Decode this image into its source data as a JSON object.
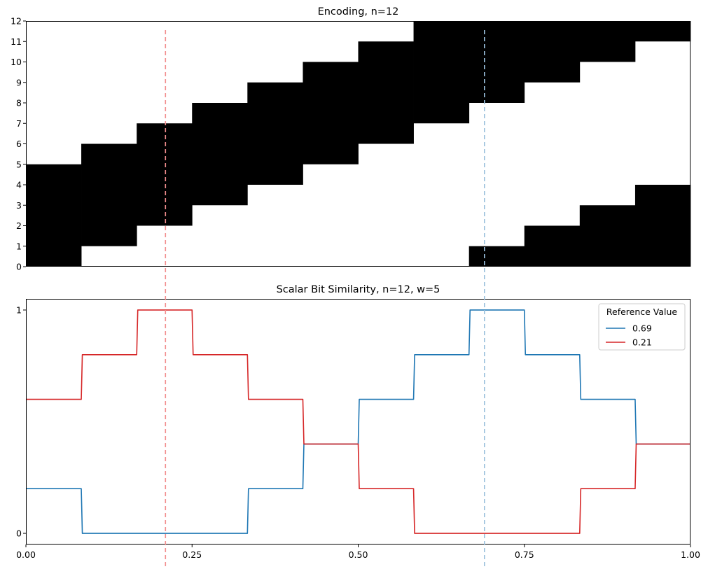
{
  "chart_data": [
    {
      "type": "heatmap",
      "title": "Encoding, n=12",
      "n": 12,
      "w": 5,
      "x_range": [
        0,
        1
      ],
      "y_range": [
        0,
        12
      ],
      "yticks": [
        "0",
        "1",
        "2",
        "3",
        "4",
        "5",
        "6",
        "7",
        "8",
        "9",
        "10",
        "11",
        "12"
      ],
      "cell_color": "#000000",
      "background_color": "#ffffff",
      "x_bins": [
        0,
        0.0833,
        0.1667,
        0.25,
        0.3333,
        0.4167,
        0.5,
        0.5833,
        0.6667,
        0.75,
        0.8333,
        0.9167,
        1.0
      ],
      "active_bits": [
        {
          "x_start": 0,
          "x_end": 0.0833,
          "y_start": 0,
          "y_end": 5
        },
        {
          "x_start": 0.0833,
          "x_end": 0.1667,
          "y_start": 1,
          "y_end": 6
        },
        {
          "x_start": 0.1667,
          "x_end": 0.25,
          "y_start": 2,
          "y_end": 7
        },
        {
          "x_start": 0.25,
          "x_end": 0.3333,
          "y_start": 3,
          "y_end": 8
        },
        {
          "x_start": 0.3333,
          "x_end": 0.4167,
          "y_start": 4,
          "y_end": 9
        },
        {
          "x_start": 0.4167,
          "x_end": 0.5,
          "y_start": 5,
          "y_end": 10
        },
        {
          "x_start": 0.5,
          "x_end": 0.5833,
          "y_start": 6,
          "y_end": 11
        },
        {
          "x_start": 0.5833,
          "x_end": 0.6667,
          "y_start": 7,
          "y_end": 12
        },
        {
          "x_start": 0.6667,
          "x_end": 0.75,
          "y_start": 8,
          "y_end": 12
        },
        {
          "x_start": 0.6667,
          "x_end": 0.75,
          "y_start": 0,
          "y_end": 1
        },
        {
          "x_start": 0.75,
          "x_end": 0.8333,
          "y_start": 9,
          "y_end": 12
        },
        {
          "x_start": 0.75,
          "x_end": 0.8333,
          "y_start": 0,
          "y_end": 2
        },
        {
          "x_start": 0.8333,
          "x_end": 0.9167,
          "y_start": 10,
          "y_end": 12
        },
        {
          "x_start": 0.8333,
          "x_end": 0.9167,
          "y_start": 0,
          "y_end": 3
        },
        {
          "x_start": 0.9167,
          "x_end": 1.0,
          "y_start": 11,
          "y_end": 12
        },
        {
          "x_start": 0.9167,
          "x_end": 1.0,
          "y_start": 0,
          "y_end": 4
        }
      ]
    },
    {
      "type": "line",
      "title": "Scalar Bit Similarity, n=12, w=5",
      "x_range": [
        0,
        1
      ],
      "y_range": [
        -0.05,
        1.05
      ],
      "yticks": [
        {
          "value": 0,
          "label": "0"
        },
        {
          "value": 1,
          "label": "1"
        }
      ],
      "xticks": [
        {
          "value": 0,
          "label": "0.00"
        },
        {
          "value": 0.25,
          "label": "0.25"
        },
        {
          "value": 0.5,
          "label": "0.50"
        },
        {
          "value": 0.75,
          "label": "0.75"
        },
        {
          "value": 1.0,
          "label": "1.00"
        }
      ],
      "legend_title": "Reference Value",
      "legend_position": "upper right",
      "x": [
        0,
        0.0833,
        0.0849,
        0.1667,
        0.1683,
        0.25,
        0.2516,
        0.3333,
        0.3349,
        0.4167,
        0.4183,
        0.5,
        0.5016,
        0.5833,
        0.5849,
        0.6667,
        0.6683,
        0.75,
        0.7516,
        0.8333,
        0.8349,
        0.9167,
        0.9183,
        1.0
      ],
      "series": [
        {
          "name": "0.69",
          "color": "#1f77b4",
          "values": [
            0.2,
            0.2,
            0,
            0,
            0,
            0,
            0,
            0,
            0.2,
            0.2,
            0.4,
            0.4,
            0.6,
            0.6,
            0.8,
            0.8,
            1,
            1,
            0.8,
            0.8,
            0.6,
            0.6,
            0.4,
            0.4
          ]
        },
        {
          "name": "0.21",
          "color": "#d62728",
          "values": [
            0.6,
            0.6,
            0.8,
            0.8,
            1,
            1,
            0.8,
            0.8,
            0.6,
            0.6,
            0.4,
            0.4,
            0.2,
            0.2,
            0,
            0,
            0,
            0,
            0,
            0,
            0.2,
            0.2,
            0.4,
            0.4
          ]
        }
      ]
    }
  ],
  "reference_lines": [
    {
      "x": 0.21,
      "color": "#f28e8e"
    },
    {
      "x": 0.69,
      "color": "#9cc1dc"
    }
  ]
}
